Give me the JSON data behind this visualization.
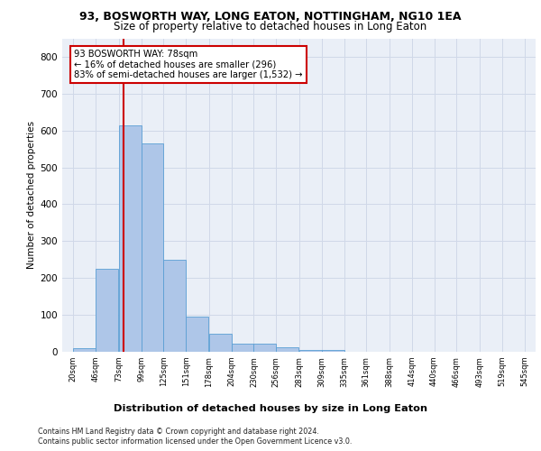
{
  "title": "93, BOSWORTH WAY, LONG EATON, NOTTINGHAM, NG10 1EA",
  "subtitle": "Size of property relative to detached houses in Long Eaton",
  "xlabel": "Distribution of detached houses by size in Long Eaton",
  "ylabel": "Number of detached properties",
  "bar_values": [
    10,
    225,
    615,
    565,
    250,
    95,
    48,
    22,
    22,
    12,
    5,
    5,
    0,
    0,
    0,
    0,
    0,
    0,
    0,
    0
  ],
  "bin_left": [
    20,
    46,
    73,
    99,
    125,
    151,
    178,
    204,
    230,
    256,
    283,
    309,
    335,
    361,
    388,
    414,
    440,
    466,
    493,
    519
  ],
  "bin_width": 26,
  "tick_labels": [
    "20sqm",
    "46sqm",
    "73sqm",
    "99sqm",
    "125sqm",
    "151sqm",
    "178sqm",
    "204sqm",
    "230sqm",
    "256sqm",
    "283sqm",
    "309sqm",
    "335sqm",
    "361sqm",
    "388sqm",
    "414sqm",
    "440sqm",
    "466sqm",
    "493sqm",
    "519sqm",
    "545sqm"
  ],
  "tick_positions": [
    20,
    46,
    73,
    99,
    125,
    151,
    178,
    204,
    230,
    256,
    283,
    309,
    335,
    361,
    388,
    414,
    440,
    466,
    493,
    519,
    545
  ],
  "bar_color": "#aec6e8",
  "bar_edge_color": "#5a9fd4",
  "property_line_x": 78,
  "property_line_color": "#cc0000",
  "annotation_line1": "93 BOSWORTH WAY: 78sqm",
  "annotation_line2": "← 16% of detached houses are smaller (296)",
  "annotation_line3": "83% of semi-detached houses are larger (1,532) →",
  "annotation_box_color": "#ffffff",
  "annotation_box_edge_color": "#cc0000",
  "ylim": [
    0,
    850
  ],
  "yticks": [
    0,
    100,
    200,
    300,
    400,
    500,
    600,
    700,
    800
  ],
  "grid_color": "#d0d8e8",
  "background_color": "#eaeff7",
  "footer_line1": "Contains HM Land Registry data © Crown copyright and database right 2024.",
  "footer_line2": "Contains public sector information licensed under the Open Government Licence v3.0."
}
